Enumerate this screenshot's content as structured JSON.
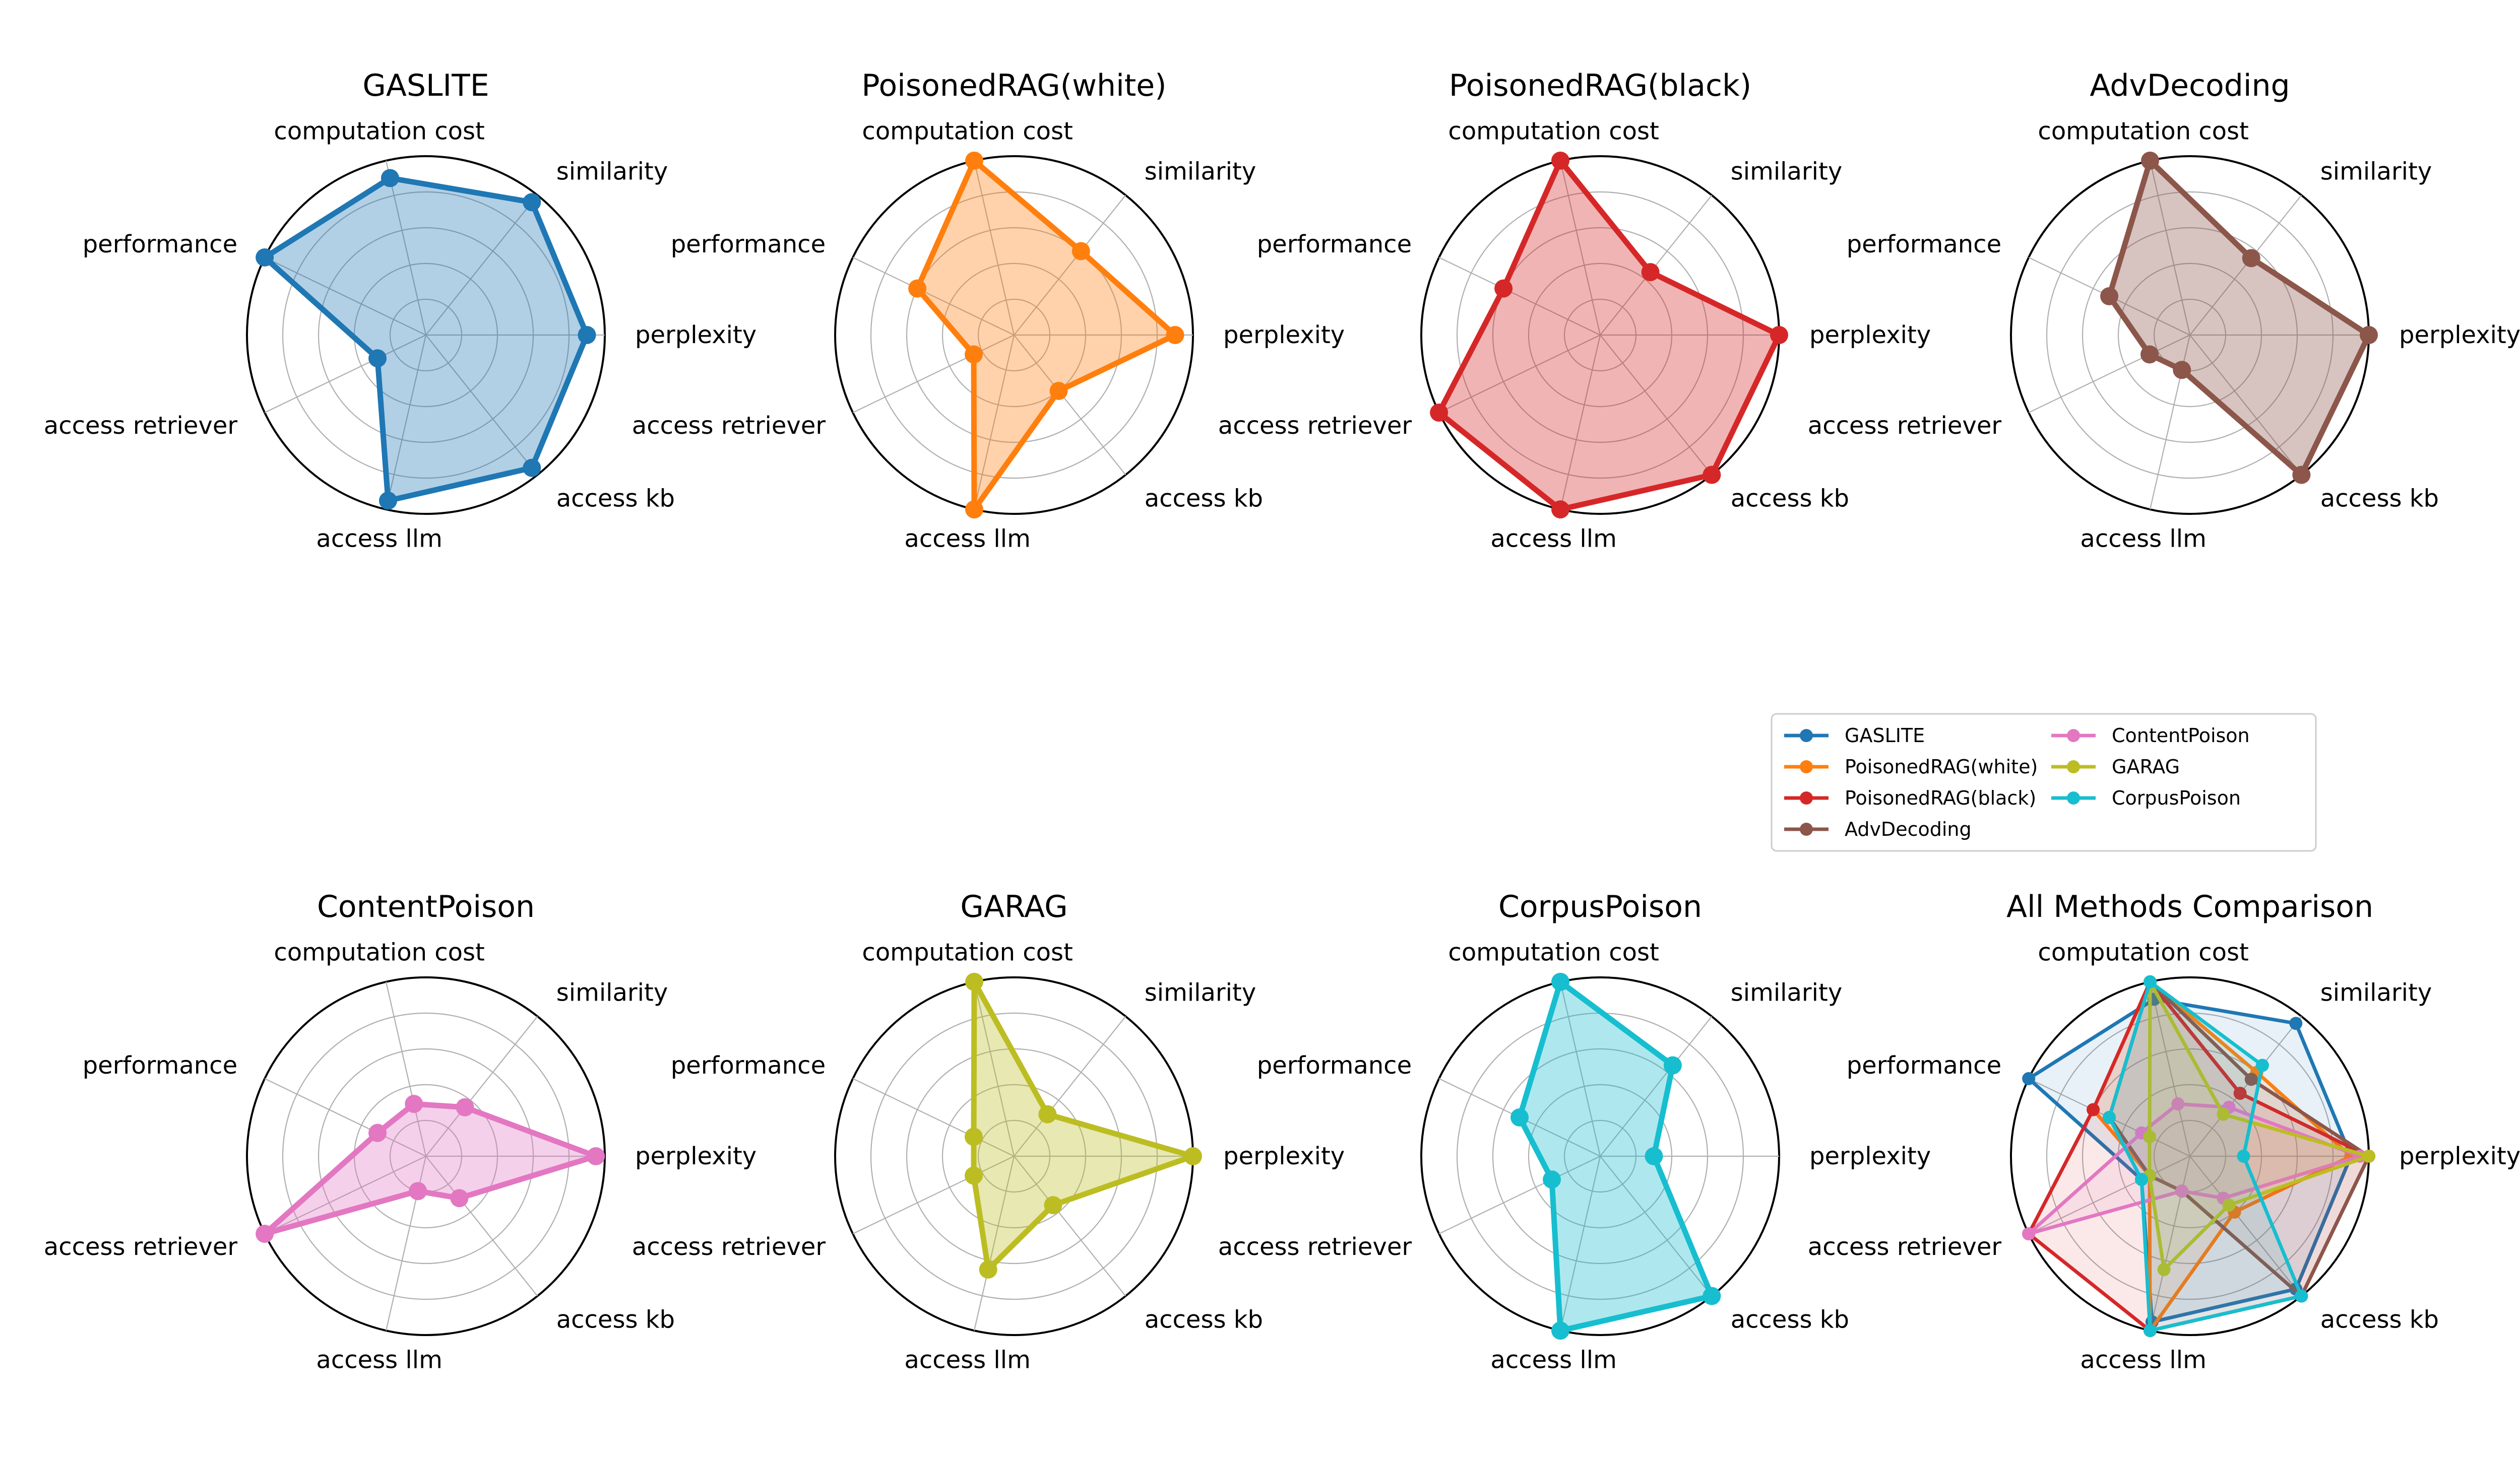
{
  "chart_data": {
    "type": "radar",
    "axes": [
      "perplexity",
      "similarity",
      "computation cost",
      "performance",
      "access retriever",
      "access llm",
      "access kb"
    ],
    "rlim": [
      0,
      1
    ],
    "radial_gridlines": [
      0.2,
      0.4,
      0.6,
      0.8,
      1.0
    ],
    "radial_tick_labels": "none",
    "legend_location": "right of middle row, two columns",
    "colors": {
      "GASLITE": "#1f77b4",
      "PoisonedRAG(white)": "#ff7f0e",
      "PoisonedRAG(black)": "#d62728",
      "AdvDecoding": "#8c564b",
      "ContentPoison": "#e377c2",
      "GARAG": "#bcbd22",
      "CorpusPoison": "#17becf"
    },
    "series": [
      {
        "name": "GASLITE",
        "values": [
          0.9,
          0.95,
          0.9,
          1.0,
          0.3,
          0.95,
          0.95
        ]
      },
      {
        "name": "PoisonedRAG(white)",
        "values": [
          0.9,
          0.6,
          1.0,
          0.6,
          0.25,
          1.0,
          0.4
        ]
      },
      {
        "name": "PoisonedRAG(black)",
        "values": [
          1.0,
          0.45,
          1.0,
          0.6,
          1.0,
          1.0,
          1.0
        ]
      },
      {
        "name": "AdvDecoding",
        "values": [
          1.0,
          0.55,
          1.0,
          0.5,
          0.25,
          0.2,
          1.0
        ]
      },
      {
        "name": "ContentPoison",
        "values": [
          0.95,
          0.35,
          0.3,
          0.3,
          1.0,
          0.2,
          0.3
        ]
      },
      {
        "name": "GARAG",
        "values": [
          1.0,
          0.3,
          1.0,
          0.25,
          0.25,
          0.65,
          0.35
        ]
      },
      {
        "name": "CorpusPoison",
        "values": [
          0.3,
          0.65,
          1.0,
          0.5,
          0.3,
          1.0,
          1.0
        ]
      }
    ],
    "charts": [
      {
        "title": "GASLITE",
        "series": [
          "GASLITE"
        ]
      },
      {
        "title": "PoisonedRAG(white)",
        "series": [
          "PoisonedRAG(white)"
        ]
      },
      {
        "title": "PoisonedRAG(black)",
        "series": [
          "PoisonedRAG(black)"
        ]
      },
      {
        "title": "AdvDecoding",
        "series": [
          "AdvDecoding"
        ]
      },
      {
        "title": "ContentPoison",
        "series": [
          "ContentPoison"
        ]
      },
      {
        "title": "GARAG",
        "series": [
          "GARAG"
        ]
      },
      {
        "title": "CorpusPoison",
        "series": [
          "CorpusPoison"
        ]
      },
      {
        "title": "All Methods Comparison",
        "series": [
          "GASLITE",
          "PoisonedRAG(white)",
          "PoisonedRAG(black)",
          "AdvDecoding",
          "ContentPoison",
          "GARAG",
          "CorpusPoison"
        ]
      }
    ],
    "legend_entries": [
      "GASLITE",
      "PoisonedRAG(white)",
      "PoisonedRAG(black)",
      "AdvDecoding",
      "ContentPoison",
      "GARAG",
      "CorpusPoison"
    ]
  }
}
